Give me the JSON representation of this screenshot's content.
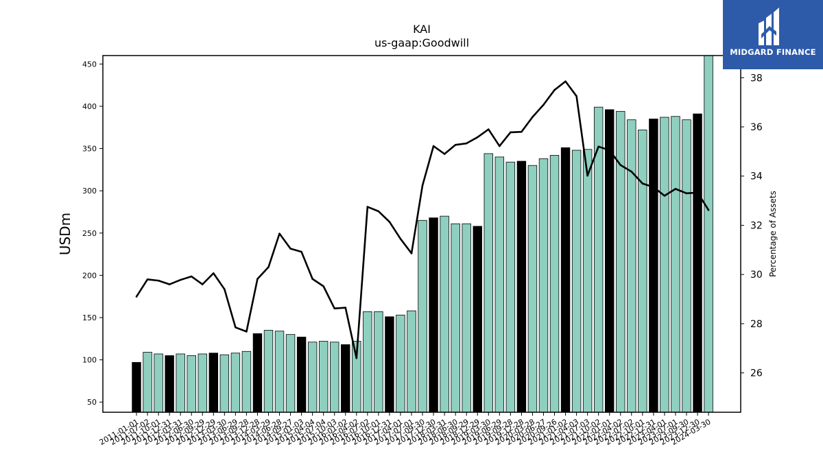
{
  "chart_data": {
    "type": "bar",
    "title": "KAI",
    "subtitle": "us-gaap:Goodwill",
    "ylabel": "USDm",
    "y2label": "Percentage of Assets",
    "ylim": [
      38,
      460
    ],
    "y2lim": [
      24.4,
      38.9
    ],
    "yticks": [
      50,
      100,
      150,
      200,
      250,
      300,
      350,
      400,
      450
    ],
    "y2ticks": [
      26,
      28,
      30,
      32,
      34,
      36,
      38
    ],
    "categories": [
      "2011-01-01",
      "2011-07-02",
      "2011-10-01",
      "2011-12-31",
      "2012-03-31",
      "2012-06-30",
      "2012-09-29",
      "2012-12-29",
      "2013-03-30",
      "2013-06-29",
      "2013-09-28",
      "2013-12-28",
      "2014-03-29",
      "2014-06-28",
      "2014-09-27",
      "2015-01-03",
      "2015-04-04",
      "2015-07-04",
      "2015-10-03",
      "2016-01-02",
      "2016-04-02",
      "2016-07-02",
      "2016-10-01",
      "2016-12-31",
      "2017-04-01",
      "2017-07-01",
      "2017-09-30",
      "2017-12-30",
      "2018-03-31",
      "2018-06-30",
      "2018-09-29",
      "2018-12-29",
      "2019-03-30",
      "2019-06-29",
      "2019-09-28",
      "2019-12-28",
      "2020-03-28",
      "2020-06-27",
      "2020-09-26",
      "2021-01-02",
      "2021-04-03",
      "2021-07-03",
      "2021-10-02",
      "2022-01-01",
      "2022-04-02",
      "2022-07-02",
      "2022-10-01",
      "2022-12-31",
      "2023-04-01",
      "2023-07-01",
      "2023-09-30",
      "2023-12-30",
      "2024-03-30"
    ],
    "series": [
      {
        "values": [
          97,
          109,
          107,
          105,
          107,
          105,
          107,
          108,
          106,
          108,
          110,
          131,
          135,
          134,
          130,
          127,
          121,
          122,
          121,
          118,
          122,
          157,
          157,
          151,
          153,
          158,
          265,
          268,
          270,
          261,
          261,
          258,
          344,
          340,
          334,
          335,
          330,
          338,
          342,
          351,
          348,
          349,
          399,
          396,
          394,
          384,
          372,
          385,
          387,
          388,
          384,
          391,
          461
        ]
      },
      {
        "values": [
          29.1,
          29.8,
          29.75,
          29.6,
          29.78,
          29.92,
          29.6,
          30.05,
          29.4,
          27.85,
          27.68,
          29.82,
          30.3,
          31.66,
          31.05,
          30.92,
          29.82,
          29.52,
          28.62,
          28.65,
          26.6,
          32.75,
          32.57,
          32.14,
          31.45,
          30.86,
          33.62,
          35.22,
          34.9,
          35.27,
          35.33,
          35.58,
          35.9,
          35.22,
          35.78,
          35.8,
          36.4,
          36.9,
          37.5,
          37.85,
          37.25,
          34.02,
          35.2,
          35.05,
          34.45,
          34.18,
          33.7,
          33.55,
          33.2,
          33.48,
          33.3,
          33.33,
          32.62
        ]
      }
    ],
    "highlight_indices": [
      0,
      3,
      7,
      11,
      15,
      19,
      23,
      27,
      31,
      35,
      39,
      43,
      47,
      51
    ],
    "colors": {
      "bar": "#8ecfbf",
      "bar_highlight": "#000000",
      "bar_edge": "#000000",
      "line": "#000000"
    }
  },
  "brand": {
    "name": "MIDGARD FINANCE",
    "color": "#2e5aaa"
  }
}
